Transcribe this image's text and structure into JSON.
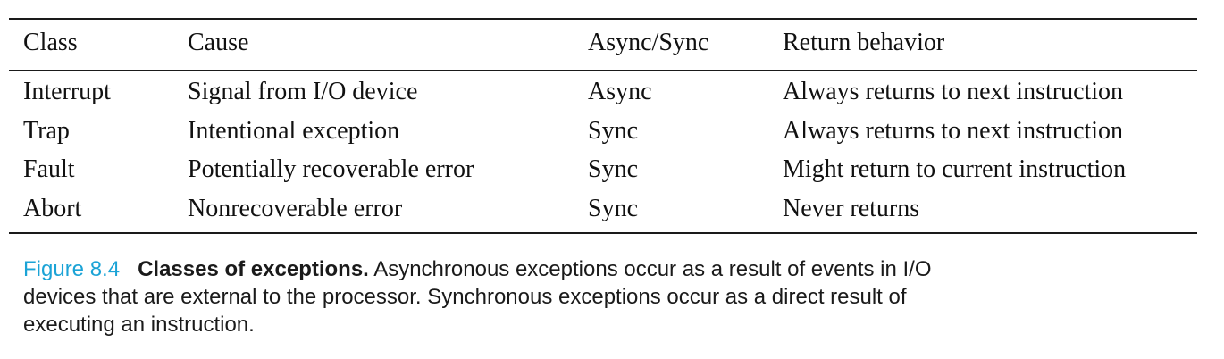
{
  "table": {
    "headers": [
      "Class",
      "Cause",
      "Async/Sync",
      "Return behavior"
    ],
    "rows": [
      [
        "Interrupt",
        "Signal from I/O device",
        "Async",
        "Always returns to next instruction"
      ],
      [
        "Trap",
        "Intentional exception",
        "Sync",
        "Always returns to next instruction"
      ],
      [
        "Fault",
        "Potentially recoverable error",
        "Sync",
        "Might return to current instruction"
      ],
      [
        "Abort",
        "Nonrecoverable error",
        "Sync",
        "Never returns"
      ]
    ]
  },
  "caption": {
    "label": "Figure 8.4",
    "title": "Classes of exceptions.",
    "lines": [
      "Asynchronous exceptions occur as a result of events in I/O",
      "devices that are external to the processor. Synchronous exceptions occur as a direct result of",
      "executing an instruction."
    ]
  },
  "colors": {
    "figure_label": "#1ba3d6",
    "text": "#111111"
  }
}
